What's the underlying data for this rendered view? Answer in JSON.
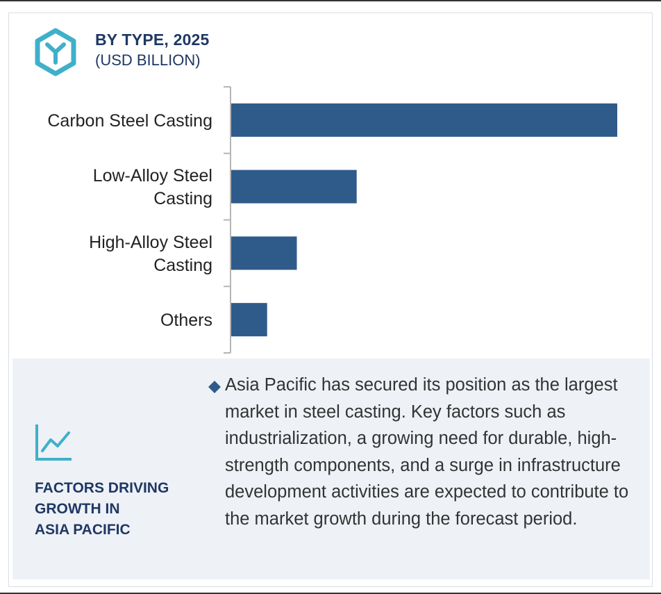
{
  "header": {
    "icon": "hexagon-y-icon",
    "title": "BY TYPE, 2025",
    "subtitle": "(USD BILLION)"
  },
  "colors": {
    "bar": "#2f5b8a",
    "accent_icon": "#3fb0c9",
    "heading": "#1f3864",
    "panel_bg": "#eef1f6",
    "axis": "#b5b5b5"
  },
  "chart_data": {
    "type": "bar",
    "orientation": "horizontal",
    "categories": [
      [
        "Carbon Steel Casting"
      ],
      [
        "Low-Alloy Steel",
        "Casting"
      ],
      [
        "High-Alloy Steel",
        "Casting"
      ],
      [
        "Others"
      ]
    ],
    "values": [
      100,
      32.5,
      17,
      9.3
    ],
    "value_axis_shown": false,
    "grid": false,
    "legend": "none"
  },
  "factors": {
    "icon": "trend-line-chart-icon",
    "title_lines": [
      "FACTORS DRIVING",
      "GROWTH IN",
      "ASIA PACIFIC"
    ],
    "bullet_icon": "diamond-bullet-icon",
    "text": "Asia Pacific has secured its position as the largest market in steel casting. Key factors such as industrialization, a growing need for durable, high-strength components, and a surge in infrastructure development activities are expected to contribute to the market growth during the forecast period."
  }
}
